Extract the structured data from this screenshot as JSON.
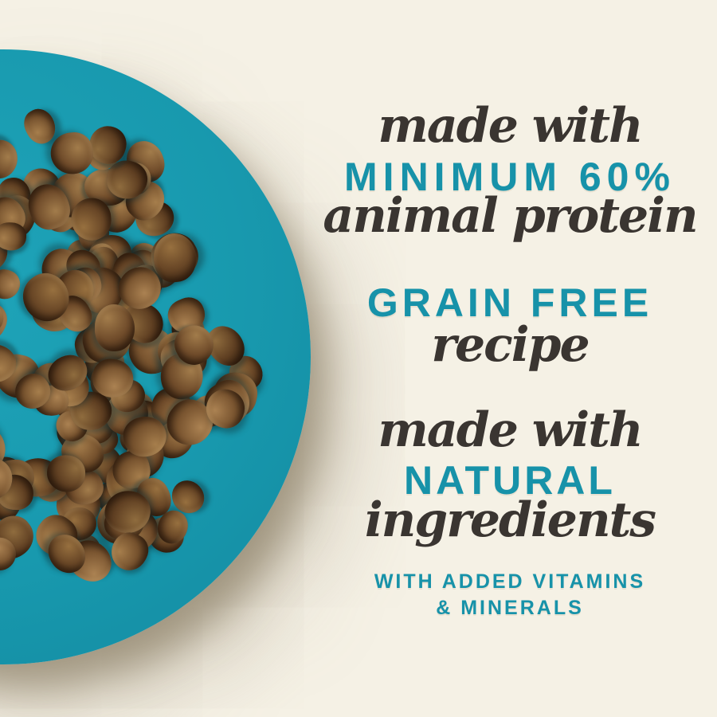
{
  "colors": {
    "background": "#f5f1e5",
    "teal_text": "#1792a9",
    "dark_text": "#3a3531",
    "plate_teal": "#1899ae"
  },
  "claims": {
    "made_with_1": "made with",
    "minimum_60": "MINIMUM 60%",
    "animal_protein": "animal protein",
    "grain_free": "GRAIN FREE",
    "recipe": "recipe",
    "made_with_2": "made with",
    "natural": "NATURAL",
    "ingredients": "ingredients",
    "vitamins_line_1": "WITH ADDED VITAMINS",
    "vitamins_line_2": "& MINERALS"
  },
  "illustration": {
    "type": "photo",
    "subject": "pile of round brown dog kibble on a teal plate, top-down view",
    "kibble_palette": [
      {
        "base": "#6f4b2a",
        "light": "#a27c4b",
        "dark": "#33200f"
      },
      {
        "base": "#5f3f22",
        "light": "#8f6c3e",
        "dark": "#2a1a0c"
      },
      {
        "base": "#7a5530",
        "light": "#ab8252",
        "dark": "#3a2512"
      },
      {
        "base": "#684626",
        "light": "#97703f",
        "dark": "#2f1d0e"
      },
      {
        "base": "#75512d",
        "light": "#a67e4c",
        "dark": "#362211"
      }
    ]
  }
}
